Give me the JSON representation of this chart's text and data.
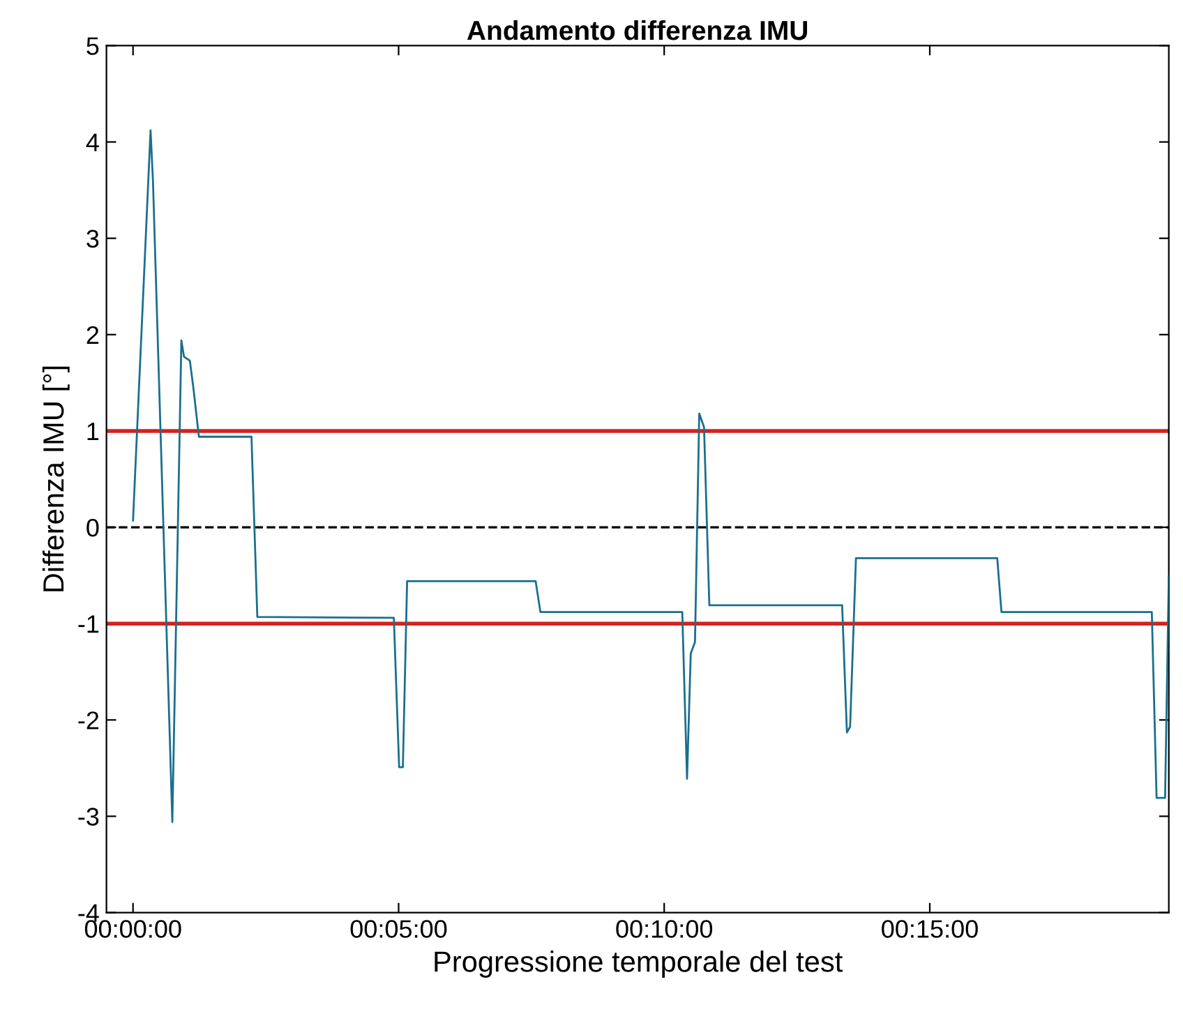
{
  "chart_data": {
    "type": "line",
    "title": "Andamento differenza IMU",
    "xlabel": "Progressione temporale del test",
    "ylabel": "Differenza IMU [°]",
    "series": [
      {
        "color": "#1a6f8f",
        "x": [
          0,
          0.33,
          0.375,
          0.74,
          0.91,
          0.96,
          1.07,
          1.14,
          1.24,
          2.23,
          2.34,
          4.91,
          5.01,
          5.08,
          5.16,
          7.58,
          7.67,
          10.34,
          10.43,
          10.5,
          10.58,
          10.66,
          10.75,
          10.85,
          13.35,
          13.44,
          13.5,
          13.61,
          16.27,
          16.35,
          19.18,
          19.27,
          19.43,
          19.5
        ],
        "values": [
          0.07,
          4.12,
          3.6,
          -3.06,
          1.94,
          1.77,
          1.73,
          1.43,
          0.94,
          0.94,
          -0.93,
          -0.94,
          -2.49,
          -2.49,
          -0.56,
          -0.56,
          -0.88,
          -0.88,
          -2.61,
          -1.31,
          -1.19,
          1.18,
          1.04,
          -0.81,
          -0.81,
          -2.13,
          -2.07,
          -0.32,
          -0.32,
          -0.88,
          -0.88,
          -2.81,
          -2.81,
          -0.51
        ]
      }
    ],
    "ref_lines": [
      {
        "axis": "y",
        "value": 1,
        "color": "#d62020",
        "line_style": "solid"
      },
      {
        "axis": "y",
        "value": -1,
        "color": "#d62020",
        "line_style": "solid"
      },
      {
        "axis": "y",
        "value": 0,
        "color": "#000000",
        "line_style": "dashed"
      }
    ],
    "xlim": [
      -0.5,
      19.5
    ],
    "xticks": [
      {
        "value": 0,
        "label": "00:00:00"
      },
      {
        "value": 5,
        "label": "00:05:00"
      },
      {
        "value": 10,
        "label": "00:10:00"
      },
      {
        "value": 15,
        "label": "00:15:00"
      }
    ],
    "ylim": [
      -4,
      5
    ],
    "yticks": [
      -4,
      -3,
      -2,
      -1,
      0,
      1,
      2,
      3,
      4,
      5
    ],
    "grid": false,
    "legend": false,
    "marker": "none",
    "line_style": "solid"
  }
}
